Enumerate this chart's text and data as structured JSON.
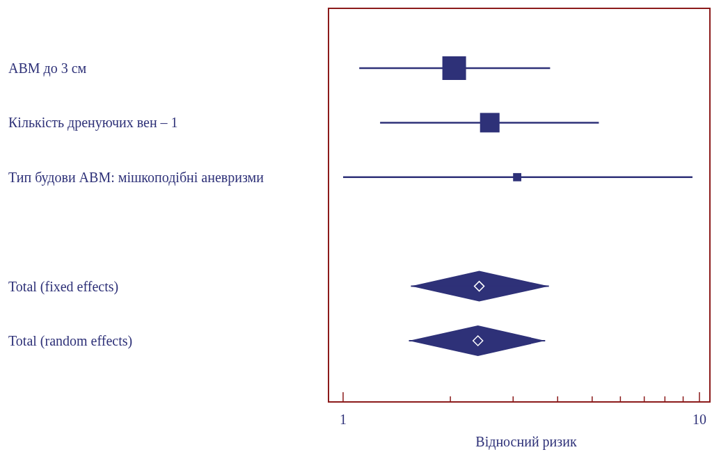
{
  "chart_data": {
    "type": "scatter",
    "orientation": "horizontal",
    "xlabel": "Відносний ризик",
    "log": "x",
    "xlim": [
      0.91,
      10.7
    ],
    "xticks": [
      1,
      {
        "value": 2,
        "label": null
      },
      {
        "value": 3,
        "label": null
      },
      {
        "value": 4,
        "label": null
      },
      {
        "value": 5,
        "label": null
      },
      {
        "value": 6,
        "label": null
      },
      {
        "value": 7,
        "label": null
      },
      {
        "value": 8,
        "label": null
      },
      {
        "value": 9,
        "label": null
      },
      10
    ],
    "categories": [
      "АВМ до 3 см",
      "Кількість дренуючих вен – 1",
      "Тип будови АВМ: мішкоподібні аневризми",
      null,
      "Total (fixed effects)",
      "Total (random effects)"
    ],
    "series": [
      {
        "color": "#2e3178",
        "marker": "square",
        "values": [
          2.05,
          2.58,
          3.08,
          null,
          null,
          null
        ],
        "errors": [
          [
            1.11,
            3.81
          ],
          [
            1.27,
            5.22
          ],
          [
            1.0,
            9.56
          ],
          null,
          null,
          null
        ],
        "sizes": [
          1,
          0.68,
          0.12,
          null,
          null,
          null
        ]
      },
      {
        "color": "#2e3178",
        "marker": "diamond",
        "values": [
          null,
          null,
          null,
          null,
          2.41,
          2.39
        ],
        "errors": [
          null,
          null,
          null,
          null,
          [
            1.55,
            3.78
          ],
          [
            1.53,
            3.69
          ]
        ]
      }
    ]
  }
}
